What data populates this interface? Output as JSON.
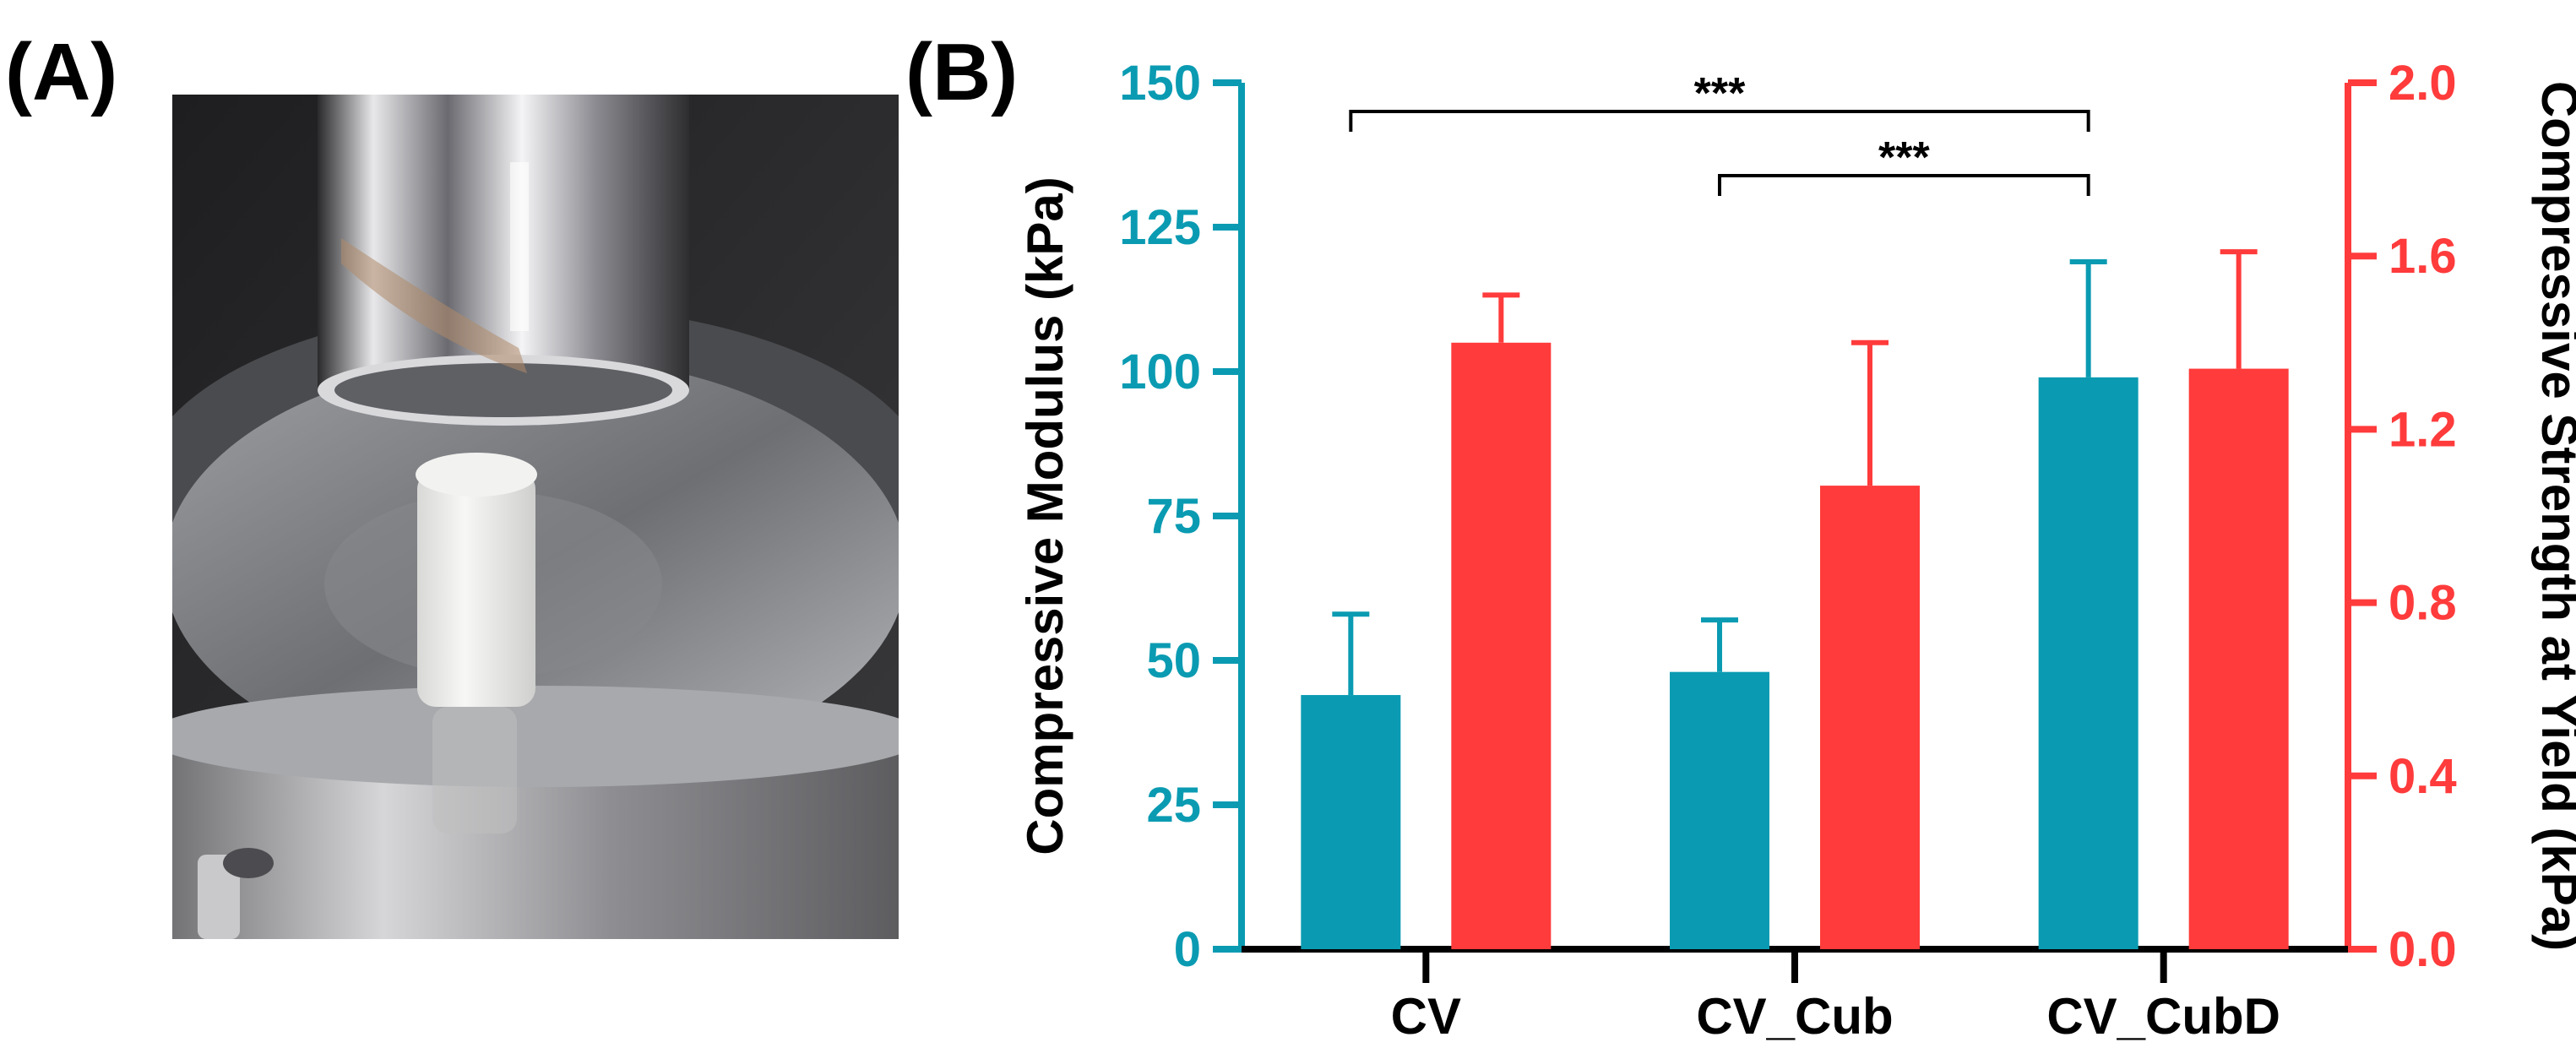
{
  "panels": {
    "a_label": "(A)",
    "b_label": "(B)"
  },
  "photo": {
    "description_name": "compression-test-photo"
  },
  "chart_data": {
    "type": "bar",
    "categories": [
      "CV",
      "CV_Cub",
      "CV_CubD"
    ],
    "series": [
      {
        "name": "Compressive Modulus (kPa)",
        "axis": "left",
        "color": "#0a9bb2",
        "values": [
          44,
          48,
          99
        ],
        "errors": [
          14,
          9,
          20
        ]
      },
      {
        "name": "Compressive Strength at Yield (kPa)",
        "axis": "right",
        "color": "#ff3b3b",
        "values": [
          1.4,
          1.07,
          1.34
        ],
        "errors": [
          0.11,
          0.33,
          0.27
        ]
      }
    ],
    "y_left": {
      "label": "Compressive Modulus (kPa)",
      "ylim": [
        0,
        150
      ],
      "ticks": [
        "0",
        "25",
        "50",
        "75",
        "100",
        "125",
        "150"
      ],
      "color": "#0a9bb2"
    },
    "y_right": {
      "label": "Compressive Strength at Yield (kPa)",
      "ylim": [
        0,
        2.0
      ],
      "ticks": [
        "0.0",
        "0.4",
        "0.8",
        "1.2",
        "1.6",
        "2.0"
      ],
      "color": "#ff3b3b"
    },
    "significance": [
      {
        "from": "CV",
        "to": "CV_CubD",
        "label": "***"
      },
      {
        "from": "CV_Cub",
        "to": "CV_CubD",
        "label": "***"
      }
    ],
    "grid": false
  }
}
